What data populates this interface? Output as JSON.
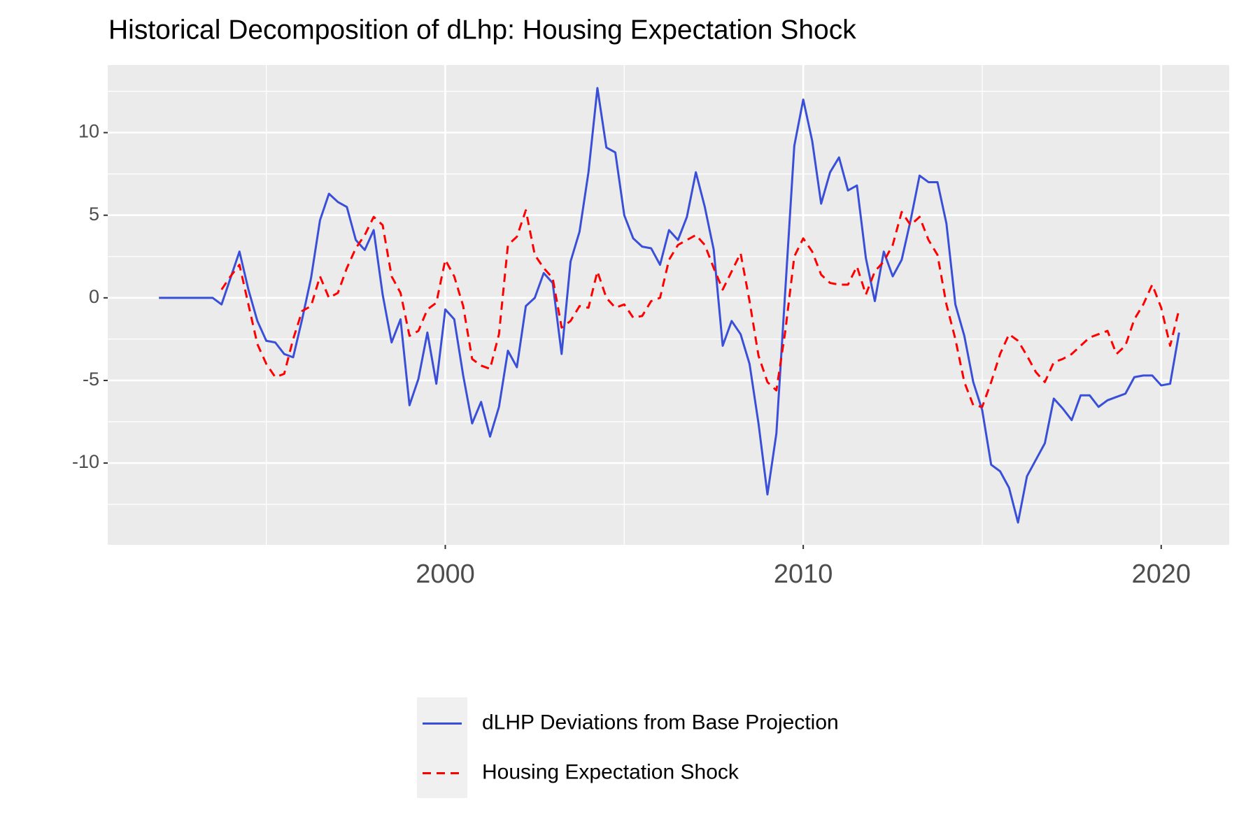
{
  "chart_data": {
    "type": "line",
    "title": "Historical Decomposition of dLhp: Housing Expectation Shock",
    "x": [
      1992,
      1992.25,
      1992.5,
      1992.75,
      1993,
      1993.25,
      1993.5,
      1993.75,
      1994,
      1994.25,
      1994.5,
      1994.75,
      1995,
      1995.25,
      1995.5,
      1995.75,
      1996,
      1996.25,
      1996.5,
      1996.75,
      1997,
      1997.25,
      1997.5,
      1997.75,
      1998,
      1998.25,
      1998.5,
      1998.75,
      1999,
      1999.25,
      1999.5,
      1999.75,
      2000,
      2000.25,
      2000.5,
      2000.75,
      2001,
      2001.25,
      2001.5,
      2001.75,
      2002,
      2002.25,
      2002.5,
      2002.75,
      2003,
      2003.25,
      2003.5,
      2003.75,
      2004,
      2004.25,
      2004.5,
      2004.75,
      2005,
      2005.25,
      2005.5,
      2005.75,
      2006,
      2006.25,
      2006.5,
      2006.75,
      2007,
      2007.25,
      2007.5,
      2007.75,
      2008,
      2008.25,
      2008.5,
      2008.75,
      2009,
      2009.25,
      2009.5,
      2009.75,
      2010,
      2010.25,
      2010.5,
      2010.75,
      2011,
      2011.25,
      2011.5,
      2011.75,
      2012,
      2012.25,
      2012.5,
      2012.75,
      2013,
      2013.25,
      2013.5,
      2013.75,
      2014,
      2014.25,
      2014.5,
      2014.75,
      2015,
      2015.25,
      2015.5,
      2015.75,
      2016,
      2016.25,
      2016.5,
      2016.75,
      2017,
      2017.25,
      2017.5,
      2017.75,
      2018,
      2018.25,
      2018.5,
      2018.75,
      2019,
      2019.25,
      2019.5,
      2019.75,
      2020,
      2020.25,
      2020.5
    ],
    "series": [
      {
        "name": "dLHP Deviations from Base Projection",
        "color": "#3a4fd8",
        "dash": false,
        "values": [
          0,
          0,
          0,
          0,
          0,
          0,
          0,
          -0.4,
          1.2,
          2.8,
          0.5,
          -1.4,
          -2.6,
          -2.7,
          -3.4,
          -3.6,
          -1.3,
          1.2,
          4.7,
          6.3,
          5.8,
          5.5,
          3.5,
          2.9,
          4.1,
          0.2,
          -2.7,
          -1.3,
          -6.5,
          -4.9,
          -2.1,
          -5.2,
          -0.7,
          -1.3,
          -4.7,
          -7.6,
          -6.3,
          -8.4,
          -6.6,
          -3.2,
          -4.2,
          -0.5,
          0,
          1.5,
          0.9,
          -3.4,
          2.2,
          4,
          7.6,
          12.7,
          9.1,
          8.8,
          5,
          3.6,
          3.1,
          3.0,
          2.0,
          4.1,
          3.5,
          4.9,
          7.6,
          5.5,
          2.9,
          -2.9,
          -1.4,
          -2.2,
          -4,
          -7.6,
          -11.9,
          -8.2,
          0.5,
          9.2,
          12,
          9.5,
          5.7,
          7.6,
          8.5,
          6.5,
          6.8,
          2.4,
          -0.2,
          2.8,
          1.3,
          2.3,
          4.7,
          7.4,
          7,
          7.0,
          4.5,
          -0.4,
          -2.3,
          -5.1,
          -6.8,
          -10.1,
          -10.5,
          -11.5,
          -13.6,
          -10.8,
          -9.8,
          -8.8,
          -6.1,
          -6.7,
          -7.4,
          -5.9,
          -5.9,
          -6.6,
          -6.2,
          -6.0,
          -5.8,
          -4.8,
          -4.7,
          -4.7,
          -5.3,
          -5.2,
          -2.1
        ]
      },
      {
        "name": "Housing Expectation Shock",
        "color": "#ff0000",
        "dash": true,
        "values": [
          null,
          null,
          null,
          null,
          null,
          null,
          null,
          0.5,
          1.3,
          2.0,
          -0.4,
          -2.8,
          -4.0,
          -4.8,
          -4.6,
          -2.5,
          -0.8,
          -0.5,
          1.3,
          0,
          0.3,
          1.8,
          3.0,
          3.8,
          4.9,
          4.4,
          1.3,
          0.3,
          -2.3,
          -2.0,
          -0.7,
          -0.3,
          2.3,
          1.3,
          -0.5,
          -3.7,
          -4.1,
          -4.3,
          -2.2,
          3.2,
          3.7,
          5.3,
          2.6,
          1.8,
          1.2,
          -1.8,
          -1.4,
          -0.5,
          -0.6,
          1.6,
          0,
          -0.6,
          -0.4,
          -1.2,
          -1.1,
          -0.2,
          0,
          2.3,
          3.2,
          3.5,
          3.8,
          3.2,
          1.8,
          0.5,
          1.6,
          2.7,
          -0.2,
          -3.5,
          -5.1,
          -5.6,
          -2.0,
          2.5,
          3.6,
          2.8,
          1.4,
          0.9,
          0.8,
          0.8,
          1.9,
          0.2,
          1.6,
          2.2,
          3.2,
          5.2,
          4.4,
          4.9,
          3.5,
          2.6,
          -0.4,
          -2.5,
          -5.1,
          -6.5,
          -6.6,
          -5.1,
          -3.4,
          -2.2,
          -2.6,
          -3.5,
          -4.5,
          -5.1,
          -3.9,
          -3.7,
          -3.4,
          -2.9,
          -2.4,
          -2.2,
          -2.0,
          -3.4,
          -2.9,
          -1.3,
          -0.4,
          0.8,
          -0.6,
          -2.9,
          -0.7
        ]
      }
    ],
    "xlim": [
      1990.57,
      2021.9
    ],
    "xticks": [
      2000,
      2010,
      2020
    ],
    "ylim": [
      -14.95,
      14.09
    ],
    "yticks": [
      -10,
      -5,
      0,
      5,
      10
    ],
    "grid": true,
    "legend": "bottom"
  }
}
